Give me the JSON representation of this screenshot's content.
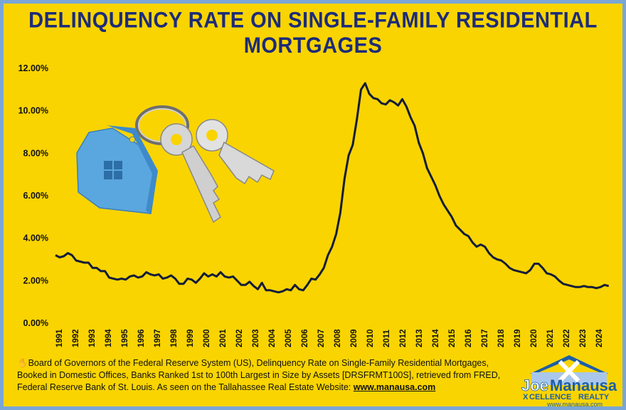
{
  "title": "DELINQUENCY RATE ON SINGLE-FAMILY RESIDENTIAL MORTGAGES",
  "source": {
    "line1": "Board of Governors of the Federal Reserve System (US), Delinquency Rate on Single-Family Residential Mortgages,",
    "line2": "Booked in Domestic Offices, Banks Ranked 1st to 100th Largest in Size by Assets [DRSFRMT100S], retrieved from FRED,",
    "line3": "Federal Reserve Bank of St. Louis. As seen on  the Tallahassee Real Estate Website: ",
    "link": "www.manausa.com",
    "icon": "hand-icon"
  },
  "logo": {
    "brand1": "Joe",
    "brand2": "Manausa",
    "sub1": "X",
    "sub2": "CELLENCE",
    "sub3": "REALTY",
    "url": "www.manausa.com",
    "icon": "house-x-icon"
  },
  "illustration": "house-keychain-keys-icon",
  "colors": {
    "background": "#f9d400",
    "border": "#7aa6d6",
    "title": "#1c2b7a",
    "line": "#141c3a"
  },
  "chart_data": {
    "type": "line",
    "title": "DELINQUENCY RATE ON SINGLE-FAMILY RESIDENTIAL MORTGAGES",
    "xlabel": "",
    "ylabel": "",
    "xlim": [
      1991,
      2024.6
    ],
    "ylim": [
      0,
      12
    ],
    "grid": false,
    "legend": "none",
    "y_ticks": [
      "0.00%",
      "2.00%",
      "4.00%",
      "6.00%",
      "8.00%",
      "10.00%",
      "12.00%"
    ],
    "x_ticks": [
      "1991",
      "1992",
      "1993",
      "1994",
      "1995",
      "1996",
      "1997",
      "1998",
      "1999",
      "2000",
      "2001",
      "2002",
      "2003",
      "2004",
      "2005",
      "2006",
      "2007",
      "2008",
      "2009",
      "2010",
      "2011",
      "2012",
      "2013",
      "2014",
      "2015",
      "2016",
      "2017",
      "2018",
      "2019",
      "2020",
      "2021",
      "2022",
      "2023",
      "2024"
    ],
    "series": [
      {
        "values": [
          [
            1991.0,
            3.2
          ],
          [
            1991.25,
            3.1
          ],
          [
            1991.5,
            3.15
          ],
          [
            1991.75,
            3.3
          ],
          [
            1992.0,
            3.2
          ],
          [
            1992.25,
            2.95
          ],
          [
            1992.5,
            2.9
          ],
          [
            1992.75,
            2.85
          ],
          [
            1993.0,
            2.85
          ],
          [
            1993.25,
            2.6
          ],
          [
            1993.5,
            2.6
          ],
          [
            1993.75,
            2.45
          ],
          [
            1994.0,
            2.45
          ],
          [
            1994.25,
            2.15
          ],
          [
            1994.5,
            2.1
          ],
          [
            1994.75,
            2.05
          ],
          [
            1995.0,
            2.1
          ],
          [
            1995.25,
            2.05
          ],
          [
            1995.5,
            2.2
          ],
          [
            1995.75,
            2.25
          ],
          [
            1996.0,
            2.15
          ],
          [
            1996.25,
            2.2
          ],
          [
            1996.5,
            2.4
          ],
          [
            1996.75,
            2.3
          ],
          [
            1997.0,
            2.25
          ],
          [
            1997.25,
            2.3
          ],
          [
            1997.5,
            2.1
          ],
          [
            1997.75,
            2.15
          ],
          [
            1998.0,
            2.25
          ],
          [
            1998.25,
            2.1
          ],
          [
            1998.5,
            1.85
          ],
          [
            1998.75,
            1.85
          ],
          [
            1999.0,
            2.1
          ],
          [
            1999.25,
            2.05
          ],
          [
            1999.5,
            1.9
          ],
          [
            1999.75,
            2.1
          ],
          [
            2000.0,
            2.35
          ],
          [
            2000.25,
            2.2
          ],
          [
            2000.5,
            2.3
          ],
          [
            2000.75,
            2.2
          ],
          [
            2001.0,
            2.4
          ],
          [
            2001.25,
            2.2
          ],
          [
            2001.5,
            2.15
          ],
          [
            2001.75,
            2.2
          ],
          [
            2002.0,
            2.0
          ],
          [
            2002.25,
            1.8
          ],
          [
            2002.5,
            1.8
          ],
          [
            2002.75,
            1.95
          ],
          [
            2003.0,
            1.75
          ],
          [
            2003.25,
            1.6
          ],
          [
            2003.5,
            1.9
          ],
          [
            2003.75,
            1.55
          ],
          [
            2004.0,
            1.55
          ],
          [
            2004.25,
            1.5
          ],
          [
            2004.5,
            1.45
          ],
          [
            2004.75,
            1.5
          ],
          [
            2005.0,
            1.6
          ],
          [
            2005.25,
            1.55
          ],
          [
            2005.5,
            1.8
          ],
          [
            2005.75,
            1.6
          ],
          [
            2006.0,
            1.55
          ],
          [
            2006.25,
            1.8
          ],
          [
            2006.5,
            2.1
          ],
          [
            2006.75,
            2.05
          ],
          [
            2007.0,
            2.3
          ],
          [
            2007.25,
            2.6
          ],
          [
            2007.5,
            3.2
          ],
          [
            2007.75,
            3.6
          ],
          [
            2008.0,
            4.2
          ],
          [
            2008.25,
            5.2
          ],
          [
            2008.5,
            6.8
          ],
          [
            2008.75,
            7.9
          ],
          [
            2009.0,
            8.4
          ],
          [
            2009.25,
            9.6
          ],
          [
            2009.5,
            11.0
          ],
          [
            2009.75,
            11.3
          ],
          [
            2010.0,
            10.8
          ],
          [
            2010.25,
            10.6
          ],
          [
            2010.5,
            10.55
          ],
          [
            2010.75,
            10.35
          ],
          [
            2011.0,
            10.3
          ],
          [
            2011.25,
            10.5
          ],
          [
            2011.5,
            10.4
          ],
          [
            2011.75,
            10.25
          ],
          [
            2012.0,
            10.55
          ],
          [
            2012.25,
            10.2
          ],
          [
            2012.5,
            9.7
          ],
          [
            2012.75,
            9.3
          ],
          [
            2013.0,
            8.5
          ],
          [
            2013.25,
            8.0
          ],
          [
            2013.5,
            7.3
          ],
          [
            2013.75,
            6.9
          ],
          [
            2014.0,
            6.5
          ],
          [
            2014.25,
            6.0
          ],
          [
            2014.5,
            5.6
          ],
          [
            2014.75,
            5.3
          ],
          [
            2015.0,
            5.0
          ],
          [
            2015.25,
            4.6
          ],
          [
            2015.5,
            4.4
          ],
          [
            2015.75,
            4.2
          ],
          [
            2016.0,
            4.1
          ],
          [
            2016.25,
            3.8
          ],
          [
            2016.5,
            3.6
          ],
          [
            2016.75,
            3.7
          ],
          [
            2017.0,
            3.6
          ],
          [
            2017.25,
            3.3
          ],
          [
            2017.5,
            3.1
          ],
          [
            2017.75,
            3.0
          ],
          [
            2018.0,
            2.95
          ],
          [
            2018.25,
            2.8
          ],
          [
            2018.5,
            2.6
          ],
          [
            2018.75,
            2.5
          ],
          [
            2019.0,
            2.45
          ],
          [
            2019.25,
            2.4
          ],
          [
            2019.5,
            2.35
          ],
          [
            2019.75,
            2.5
          ],
          [
            2020.0,
            2.8
          ],
          [
            2020.25,
            2.8
          ],
          [
            2020.5,
            2.6
          ],
          [
            2020.75,
            2.35
          ],
          [
            2021.0,
            2.3
          ],
          [
            2021.25,
            2.2
          ],
          [
            2021.5,
            2.0
          ],
          [
            2021.75,
            1.85
          ],
          [
            2022.0,
            1.8
          ],
          [
            2022.25,
            1.75
          ],
          [
            2022.5,
            1.7
          ],
          [
            2022.75,
            1.7
          ],
          [
            2023.0,
            1.75
          ],
          [
            2023.25,
            1.7
          ],
          [
            2023.5,
            1.7
          ],
          [
            2023.75,
            1.65
          ],
          [
            2024.0,
            1.7
          ],
          [
            2024.25,
            1.8
          ],
          [
            2024.5,
            1.75
          ]
        ]
      }
    ]
  }
}
